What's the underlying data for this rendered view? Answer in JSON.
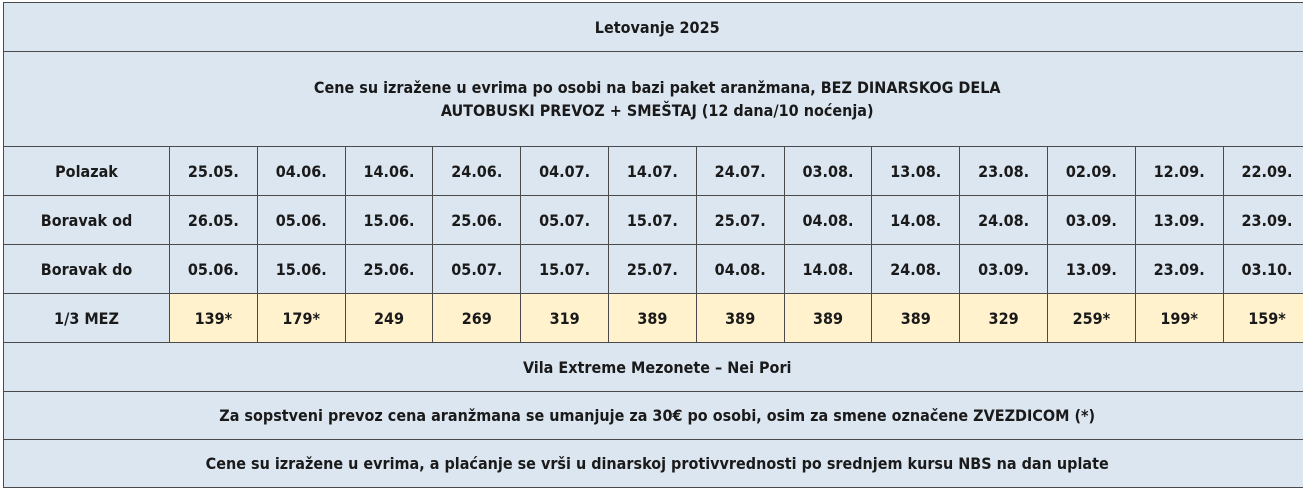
{
  "title": "Letovanje 2025",
  "intro_line1": "Cene su izražene u evrima po osobi na bazi paket aranžmana, BEZ DINARSKOG DELA",
  "intro_line2": "AUTOBUSKI PREVOZ + SMEŠTAJ (12 dana/10 noćenja)",
  "rows": {
    "polazak": {
      "label": "Polazak",
      "values": [
        "25.05.",
        "04.06.",
        "14.06.",
        "24.06.",
        "04.07.",
        "14.07.",
        "24.07.",
        "03.08.",
        "13.08.",
        "23.08.",
        "02.09.",
        "12.09.",
        "22.09."
      ]
    },
    "boravak_od": {
      "label": "Boravak od",
      "values": [
        "26.05.",
        "05.06.",
        "15.06.",
        "25.06.",
        "05.07.",
        "15.07.",
        "25.07.",
        "04.08.",
        "14.08.",
        "24.08.",
        "03.09.",
        "13.09.",
        "23.09."
      ]
    },
    "boravak_do": {
      "label": "Boravak do",
      "values": [
        "05.06.",
        "15.06.",
        "25.06.",
        "05.07.",
        "15.07.",
        "25.07.",
        "04.08.",
        "14.08.",
        "24.08.",
        "03.09.",
        "13.09.",
        "23.09.",
        "03.10."
      ]
    },
    "mez": {
      "label": "1/3 MEZ",
      "values": [
        "139*",
        "179*",
        "249",
        "269",
        "319",
        "389",
        "389",
        "389",
        "389",
        "329",
        "259*",
        "199*",
        "159*"
      ]
    }
  },
  "property": "Vila Extreme Mezonete – Nei Pori",
  "own_transport_note": "Za sopstveni prevoz cena aranžmana se umanjuje za 30€ po osobi, osim za smene označene ZVEZDICOM (*)",
  "payment_note": "Cene su izražene u evrima, a plaćanje se vrši u dinarskoj protivvrednosti po srednjem kursu NBS na dan uplate",
  "colors": {
    "cell_background": "#dce6f1",
    "price_background": "#fff2cc",
    "border": "#4a4a4a"
  }
}
